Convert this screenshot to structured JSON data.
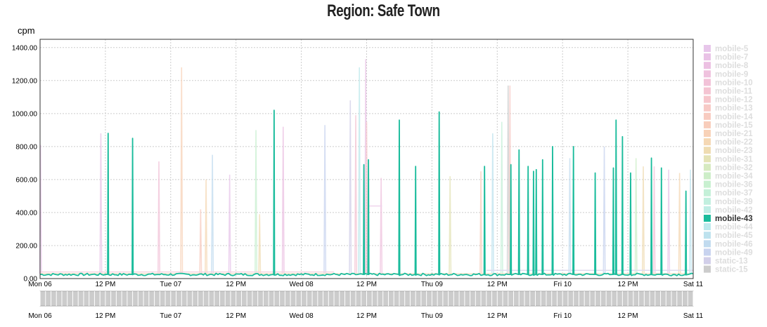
{
  "chart_data": {
    "type": "line",
    "title": "Region: Safe Town",
    "ylabel": "cpm",
    "xlabel": "",
    "ylim": [
      0,
      1450
    ],
    "xlim": [
      "2017-03-06 00:00",
      "2017-03-11 00:00"
    ],
    "y_ticks": [
      "0.00",
      "200.00",
      "400.00",
      "600.00",
      "800.00",
      "1000.00",
      "1200.00",
      "1400.00"
    ],
    "x_ticks": [
      {
        "label": "Mon 06",
        "at": "2017-03-06 00:00"
      },
      {
        "label": "12 PM",
        "at": "2017-03-06 12:00"
      },
      {
        "label": "Tue 07",
        "at": "2017-03-07 00:00"
      },
      {
        "label": "12 PM",
        "at": "2017-03-07 12:00"
      },
      {
        "label": "Wed 08",
        "at": "2017-03-08 00:00"
      },
      {
        "label": "12 PM",
        "at": "2017-03-08 12:00"
      },
      {
        "label": "Thu 09",
        "at": "2017-03-09 00:00"
      },
      {
        "label": "12 PM",
        "at": "2017-03-09 12:00"
      },
      {
        "label": "Fri 10",
        "at": "2017-03-10 00:00"
      },
      {
        "label": "12 PM",
        "at": "2017-03-10 12:00"
      },
      {
        "label": "Sat 11",
        "at": "2017-03-11 00:00"
      }
    ],
    "grid": true,
    "legend_position": "right",
    "highlighted_series": "mobile-43",
    "series": [
      {
        "name": "mobile-5",
        "color": "#e7c6ea",
        "visible": false
      },
      {
        "name": "mobile-7",
        "color": "#e9c2e6",
        "visible": false
      },
      {
        "name": "mobile-8",
        "color": "#ecc0e2",
        "visible": false
      },
      {
        "name": "mobile-9",
        "color": "#efc2de",
        "visible": false
      },
      {
        "name": "mobile-10",
        "color": "#f2c2d8",
        "visible": false
      },
      {
        "name": "mobile-11",
        "color": "#f4c4d2",
        "visible": false
      },
      {
        "name": "mobile-12",
        "color": "#f6c6cc",
        "visible": false
      },
      {
        "name": "mobile-13",
        "color": "#f7c9c5",
        "visible": false
      },
      {
        "name": "mobile-14",
        "color": "#f8cbc0",
        "visible": false
      },
      {
        "name": "mobile-15",
        "color": "#f8cdbb",
        "visible": false
      },
      {
        "name": "mobile-21",
        "color": "#f8d2b8",
        "visible": false
      },
      {
        "name": "mobile-22",
        "color": "#f5d8b4",
        "visible": false
      },
      {
        "name": "mobile-23",
        "color": "#efdcb2",
        "visible": false
      },
      {
        "name": "mobile-31",
        "color": "#e4e3b6",
        "visible": false
      },
      {
        "name": "mobile-32",
        "color": "#d6eac0",
        "visible": false
      },
      {
        "name": "mobile-34",
        "color": "#cdeec8",
        "visible": false
      },
      {
        "name": "mobile-36",
        "color": "#c8f0d0",
        "visible": false
      },
      {
        "name": "mobile-37",
        "color": "#c4f0d8",
        "visible": false
      },
      {
        "name": "mobile-39",
        "color": "#c2efdf",
        "visible": false
      },
      {
        "name": "mobile-42",
        "color": "#bfede5",
        "visible": false
      },
      {
        "name": "mobile-43",
        "color": "#1abc9c",
        "visible": true,
        "baseline": 25,
        "peaks": [
          {
            "t": "2017-03-06 12:30",
            "v": 880
          },
          {
            "t": "2017-03-06 17:00",
            "v": 850
          },
          {
            "t": "2017-03-07 19:00",
            "v": 1020
          },
          {
            "t": "2017-03-08 11:30",
            "v": 690
          },
          {
            "t": "2017-03-08 12:20",
            "v": 720
          },
          {
            "t": "2017-03-08 18:00",
            "v": 960
          },
          {
            "t": "2017-03-08 21:00",
            "v": 680
          },
          {
            "t": "2017-03-09 01:20",
            "v": 1010
          },
          {
            "t": "2017-03-09 09:40",
            "v": 680
          },
          {
            "t": "2017-03-09 14:30",
            "v": 690
          },
          {
            "t": "2017-03-09 16:00",
            "v": 780
          },
          {
            "t": "2017-03-09 17:40",
            "v": 680
          },
          {
            "t": "2017-03-09 18:40",
            "v": 650
          },
          {
            "t": "2017-03-09 19:10",
            "v": 660
          },
          {
            "t": "2017-03-09 20:20",
            "v": 720
          },
          {
            "t": "2017-03-09 22:10",
            "v": 800
          },
          {
            "t": "2017-03-10 02:00",
            "v": 800
          },
          {
            "t": "2017-03-10 06:00",
            "v": 640
          },
          {
            "t": "2017-03-10 09:20",
            "v": 670
          },
          {
            "t": "2017-03-10 09:50",
            "v": 960
          },
          {
            "t": "2017-03-10 11:00",
            "v": 860
          },
          {
            "t": "2017-03-10 12:30",
            "v": 640
          },
          {
            "t": "2017-03-10 16:20",
            "v": 730
          },
          {
            "t": "2017-03-10 18:10",
            "v": 670
          },
          {
            "t": "2017-03-10 22:40",
            "v": 530
          }
        ]
      },
      {
        "name": "mobile-44",
        "color": "#bce9ec",
        "visible": false
      },
      {
        "name": "mobile-45",
        "color": "#bde2ee",
        "visible": false
      },
      {
        "name": "mobile-46",
        "color": "#c1dbef",
        "visible": false
      },
      {
        "name": "mobile-49",
        "color": "#c8d3ef",
        "visible": false
      },
      {
        "name": "static-13",
        "color": "#d2cfe9",
        "visible": false
      },
      {
        "name": "static-15",
        "color": "#cccccc",
        "visible": false
      }
    ],
    "background_spikes": [
      {
        "t": "2017-03-06 00:05",
        "v": 810,
        "series": "mobile-5"
      },
      {
        "t": "2017-03-06 11:10",
        "v": 880,
        "series": "mobile-7"
      },
      {
        "t": "2017-03-06 21:50",
        "v": 710,
        "series": "mobile-10"
      },
      {
        "t": "2017-03-07 02:00",
        "v": 1280,
        "series": "mobile-21"
      },
      {
        "t": "2017-03-07 05:30",
        "v": 420,
        "series": "mobile-14"
      },
      {
        "t": "2017-03-07 06:30",
        "v": 600,
        "series": "mobile-22"
      },
      {
        "t": "2017-03-07 07:40",
        "v": 750,
        "series": "mobile-46"
      },
      {
        "t": "2017-03-07 10:50",
        "v": 630,
        "series": "mobile-5"
      },
      {
        "t": "2017-03-07 15:40",
        "v": 900,
        "series": "mobile-36"
      },
      {
        "t": "2017-03-07 16:20",
        "v": 390,
        "series": "mobile-23"
      },
      {
        "t": "2017-03-07 20:40",
        "v": 920,
        "series": "mobile-8"
      },
      {
        "t": "2017-03-08 04:20",
        "v": 930,
        "series": "mobile-49"
      },
      {
        "t": "2017-03-08 09:00",
        "v": 1080,
        "series": "static-13"
      },
      {
        "t": "2017-03-08 10:00",
        "v": 990,
        "series": "mobile-11"
      },
      {
        "t": "2017-03-08 10:40",
        "v": 1280,
        "series": "mobile-44"
      },
      {
        "t": "2017-03-08 11:50",
        "v": 1330,
        "series": "mobile-7"
      },
      {
        "t": "2017-03-08 12:00",
        "v": 950,
        "series": "mobile-12"
      },
      {
        "t": "2017-03-08 14:40",
        "v": 610,
        "series": "mobile-9"
      },
      {
        "t": "2017-03-09 03:20",
        "v": 620,
        "series": "mobile-31"
      },
      {
        "t": "2017-03-09 09:00",
        "v": 650,
        "series": "mobile-15"
      },
      {
        "t": "2017-03-09 11:10",
        "v": 880,
        "series": "mobile-45"
      },
      {
        "t": "2017-03-09 12:50",
        "v": 950,
        "series": "mobile-37"
      },
      {
        "t": "2017-03-09 14:00",
        "v": 1170,
        "series": "static-15"
      },
      {
        "t": "2017-03-09 14:20",
        "v": 1170,
        "series": "mobile-13"
      },
      {
        "t": "2017-03-10 01:20",
        "v": 730,
        "series": "mobile-46"
      },
      {
        "t": "2017-03-10 07:40",
        "v": 800,
        "series": "mobile-49"
      },
      {
        "t": "2017-03-10 13:30",
        "v": 730,
        "series": "mobile-34"
      },
      {
        "t": "2017-03-10 14:50",
        "v": 680,
        "series": "mobile-23"
      },
      {
        "t": "2017-03-10 16:50",
        "v": 680,
        "series": "mobile-10"
      },
      {
        "t": "2017-03-10 19:30",
        "v": 660,
        "series": "mobile-5"
      },
      {
        "t": "2017-03-10 21:30",
        "v": 640,
        "series": "mobile-22"
      },
      {
        "t": "2017-03-10 23:30",
        "v": 660,
        "series": "mobile-45"
      }
    ]
  }
}
